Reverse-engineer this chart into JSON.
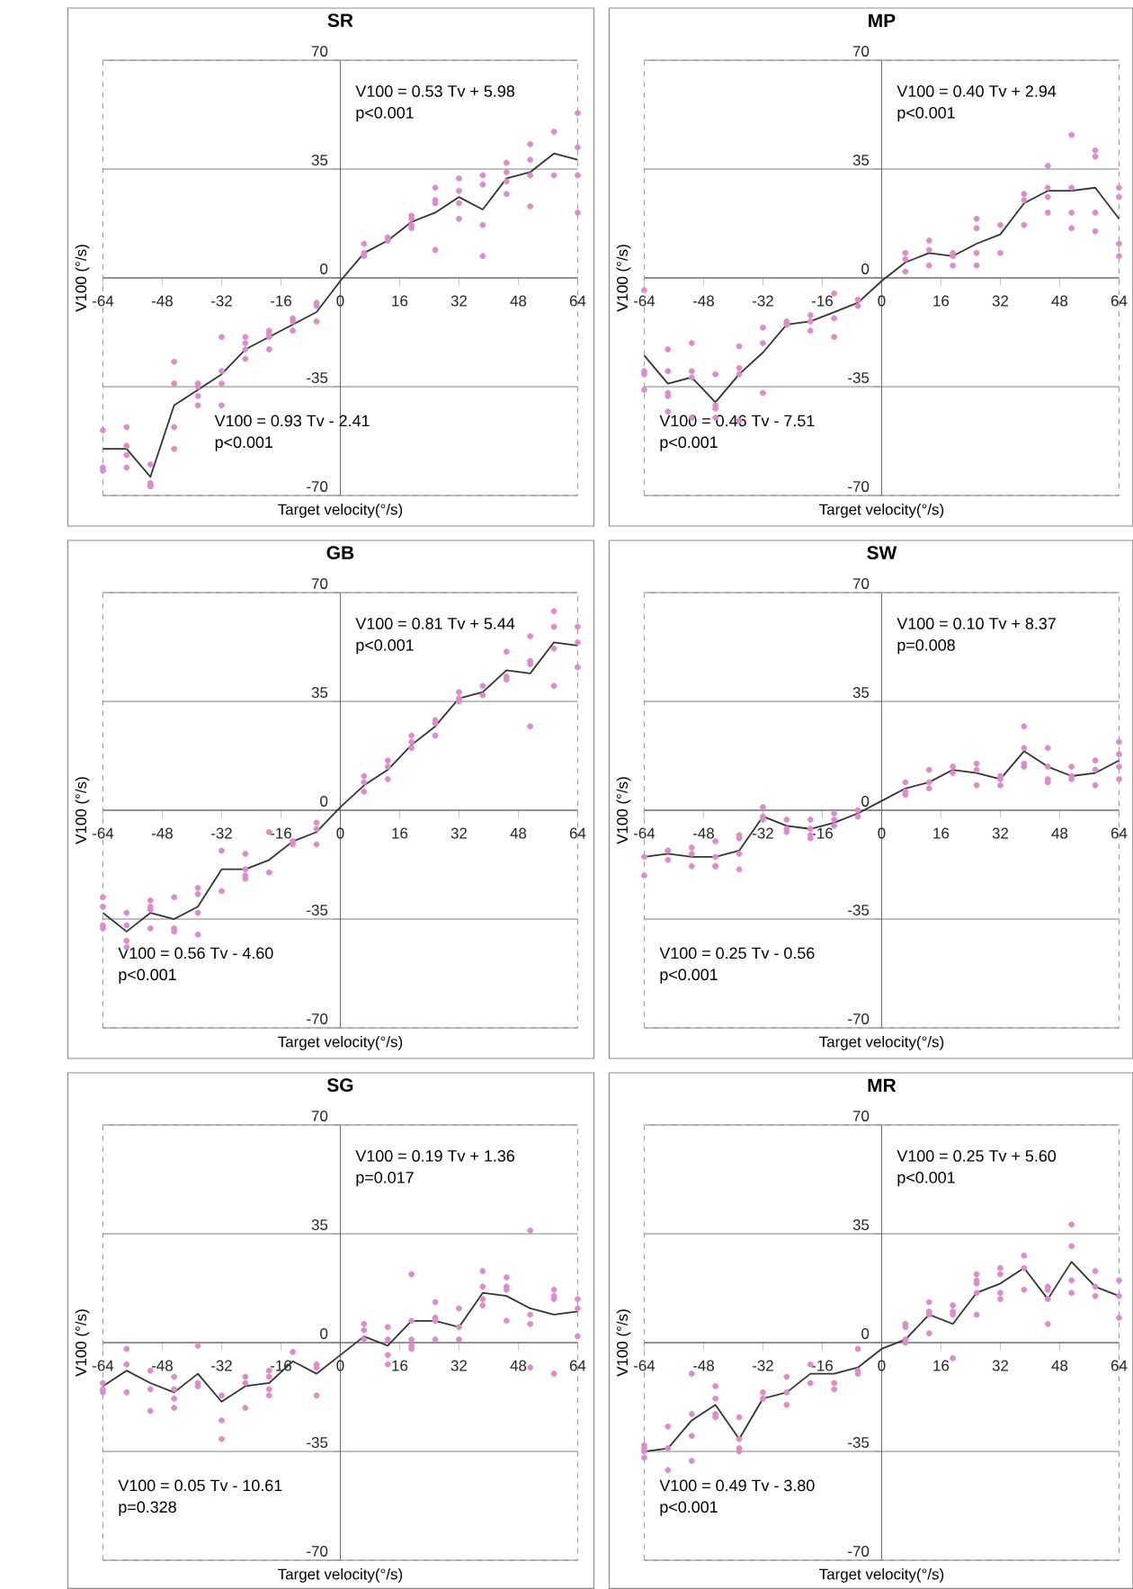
{
  "chart_data": [
    {
      "type": "line",
      "title": "SR",
      "xlabel": "Target velocity(°/s)",
      "ylabel": "V100 (°/s)",
      "xlim": [
        -64,
        64
      ],
      "ylim": [
        -70,
        70
      ],
      "xticks": [
        -64,
        -48,
        -32,
        -16,
        0,
        16,
        32,
        48,
        64
      ],
      "yticks": [
        -70,
        -35,
        0,
        35,
        70
      ],
      "grid": "y",
      "annotations": [
        "V100 = 0.53 Tv + 5.98",
        "p<0.001",
        "V100 = 0.93 Tv - 2.41",
        "p<0.001"
      ],
      "series": [
        {
          "type": "scatter",
          "marker": "circle",
          "color": "#dc8ccb",
          "x": [
            -64,
            -64,
            -64,
            -57.6,
            -57.6,
            -57.6,
            -57.6,
            -51.2,
            -51.2,
            -51.2,
            -51.2,
            -44.8,
            -44.8,
            -44.8,
            -44.8,
            -38.4,
            -38.4,
            -38.4,
            -38.4,
            -32,
            -32,
            -32,
            -32,
            -25.6,
            -25.6,
            -25.6,
            -25.6,
            -19.2,
            -19.2,
            -19.2,
            -19.2,
            -12.8,
            -12.8,
            -12.8,
            -6.4,
            -6.4,
            -6.4,
            6.4,
            6.4,
            6.4,
            12.8,
            12.8,
            19.2,
            19.2,
            19.2,
            19.2,
            25.6,
            25.6,
            25.6,
            25.6,
            32,
            32,
            32,
            32,
            38.4,
            38.4,
            38.4,
            38.4,
            44.8,
            44.8,
            44.8,
            44.8,
            51.2,
            51.2,
            51.2,
            51.2,
            57.6,
            57.6,
            64,
            64,
            64,
            64
          ],
          "values": [
            -49,
            -61,
            -62,
            -48,
            -54,
            -57,
            -61,
            -60,
            -66,
            -67,
            -67,
            -27,
            -34,
            -48,
            -55,
            -34,
            -35,
            -38,
            -41,
            -19,
            -30,
            -34,
            -41,
            -19,
            -21,
            -23,
            -26,
            -17,
            -18,
            -19,
            -23,
            -13,
            -14,
            -17,
            -8,
            -9,
            -14,
            11,
            8,
            7,
            13,
            12,
            20,
            19,
            17,
            16,
            29,
            25,
            24,
            9,
            32,
            28,
            24,
            19,
            33,
            30,
            17,
            7,
            37,
            34,
            31,
            27,
            43,
            38,
            33,
            23,
            47,
            33,
            53,
            42,
            33,
            21
          ]
        },
        {
          "marker": "none",
          "color": "#333333",
          "x": [
            -64,
            -57.6,
            -51.2,
            -44.8,
            -38.4,
            -32,
            -25.6,
            -19.2,
            -12.8,
            -6.4,
            0,
            6.4,
            12.8,
            19.2,
            25.6,
            32,
            38.4,
            44.8,
            51.2,
            57.6,
            64
          ],
          "values": [
            -55,
            -55,
            -64,
            -41,
            -36,
            -31,
            -23,
            -19,
            -15,
            -11,
            -1,
            8,
            12,
            18,
            21,
            26,
            22,
            32,
            34,
            40,
            38
          ]
        }
      ]
    },
    {
      "type": "line",
      "title": "MP",
      "xlabel": "Target velocity(°/s)",
      "ylabel": "V100 (°/s)",
      "xlim": [
        -64,
        64
      ],
      "ylim": [
        -70,
        70
      ],
      "xticks": [
        -64,
        -48,
        -32,
        -16,
        0,
        16,
        32,
        48,
        64
      ],
      "yticks": [
        -70,
        -35,
        0,
        35,
        70
      ],
      "grid": "y",
      "annotations": [
        "V100 = 0.40 Tv + 2.94",
        "p<0.001",
        "V100 = 0.46 Tv - 7.51",
        "p<0.001"
      ],
      "series": [
        {
          "type": "scatter",
          "marker": "circle",
          "color": "#dc8ccb",
          "x": [
            -64,
            -64,
            -64,
            -64,
            -57.6,
            -57.6,
            -57.6,
            -57.6,
            -57.6,
            -51.2,
            -51.2,
            -51.2,
            -51.2,
            -44.8,
            -44.8,
            -44.8,
            -44.8,
            -38.4,
            -38.4,
            -38.4,
            -38.4,
            -32,
            -32,
            -32,
            -25.6,
            -25.6,
            -25.6,
            -19.2,
            -19.2,
            -19.2,
            -12.8,
            -12.8,
            -12.8,
            -6.4,
            -6.4,
            6.4,
            6.4,
            6.4,
            12.8,
            12.8,
            12.8,
            19.2,
            19.2,
            19.2,
            25.6,
            25.6,
            25.6,
            25.6,
            32,
            32,
            38.4,
            38.4,
            38.4,
            44.8,
            44.8,
            44.8,
            44.8,
            51.2,
            51.2,
            51.2,
            51.2,
            57.6,
            57.6,
            57.6,
            57.6,
            64,
            64,
            64,
            64
          ],
          "values": [
            -4,
            -30,
            -31,
            -36,
            -23,
            -30,
            -37,
            -38,
            -43,
            -21,
            -30,
            -32,
            -45,
            -31,
            -41,
            -42,
            -45,
            -22,
            -29,
            -31,
            -46,
            -16,
            -21,
            -37,
            -14,
            -15,
            -15,
            -12,
            -14,
            -17,
            -5,
            -13,
            -19,
            -7,
            -9,
            8,
            6,
            2,
            12,
            9,
            4,
            8,
            7,
            4,
            19,
            16,
            8,
            4,
            17,
            8,
            27,
            25,
            17,
            36,
            29,
            26,
            21,
            46,
            29,
            21,
            16,
            41,
            39,
            21,
            15,
            29,
            26,
            11,
            7
          ]
        },
        {
          "marker": "none",
          "color": "#333333",
          "x": [
            -64,
            -57.6,
            -51.2,
            -44.8,
            -38.4,
            -32,
            -25.6,
            -19.2,
            -12.8,
            -6.4,
            0,
            6.4,
            12.8,
            19.2,
            25.6,
            32,
            38.4,
            44.8,
            51.2,
            57.6,
            64
          ],
          "values": [
            -25,
            -34,
            -32,
            -40,
            -31,
            -24,
            -15,
            -14,
            -11,
            -8,
            -1,
            5,
            8,
            7,
            11,
            14,
            24,
            28,
            28,
            29,
            19
          ]
        }
      ]
    },
    {
      "type": "line",
      "title": "GB",
      "xlabel": "Target velocity(°/s)",
      "ylabel": "V100 (°/s)",
      "xlim": [
        -64,
        64
      ],
      "ylim": [
        -70,
        70
      ],
      "xticks": [
        -64,
        -48,
        -32,
        -16,
        0,
        16,
        32,
        48,
        64
      ],
      "yticks": [
        -70,
        -35,
        0,
        35,
        70
      ],
      "grid": "y",
      "annotations": [
        "V100 = 0.81 Tv + 5.44",
        "p<0.001",
        "V100 = 0.56 Tv - 4.60",
        "p<0.001"
      ],
      "series": [
        {
          "type": "scatter",
          "marker": "circle",
          "color": "#dc8ccb",
          "x": [
            -64,
            -64,
            -64,
            -64,
            -57.6,
            -57.6,
            -57.6,
            -57.6,
            -51.2,
            -51.2,
            -51.2,
            -51.2,
            -44.8,
            -44.8,
            -44.8,
            -38.4,
            -38.4,
            -38.4,
            -38.4,
            -32,
            -32,
            -25.6,
            -25.6,
            -25.6,
            -25.6,
            -19.2,
            -19.2,
            -12.8,
            -12.8,
            -6.4,
            -6.4,
            -6.4,
            6.4,
            6.4,
            6.4,
            12.8,
            12.8,
            12.8,
            19.2,
            19.2,
            19.2,
            25.6,
            25.6,
            25.6,
            32,
            32,
            32,
            38.4,
            38.4,
            44.8,
            44.8,
            44.8,
            51.2,
            51.2,
            51.2,
            51.2,
            57.6,
            57.6,
            57.6,
            57.6,
            64,
            64,
            64
          ],
          "values": [
            -28,
            -31,
            -37,
            -38,
            -33,
            -37,
            -42,
            -44,
            -29,
            -31,
            -32,
            -38,
            -28,
            -38,
            -39,
            -25,
            -27,
            -33,
            -40,
            -13,
            -26,
            -14,
            -19,
            -21,
            -22,
            -7,
            -20,
            -10,
            -11,
            -4,
            -6,
            -11,
            11,
            9,
            6,
            16,
            14,
            10,
            24,
            22,
            20,
            29,
            28,
            24,
            38,
            36,
            35,
            40,
            37,
            51,
            43,
            42,
            56,
            48,
            47,
            27,
            64,
            59,
            52,
            40,
            59,
            54,
            46
          ]
        },
        {
          "marker": "none",
          "color": "#333333",
          "x": [
            -64,
            -57.6,
            -51.2,
            -44.8,
            -38.4,
            -32,
            -25.6,
            -19.2,
            -12.8,
            -6.4,
            0,
            6.4,
            12.8,
            19.2,
            25.6,
            32,
            38.4,
            44.8,
            51.2,
            57.6,
            64
          ],
          "values": [
            -33,
            -39,
            -33,
            -35,
            -31,
            -19,
            -19,
            -16,
            -10,
            -7,
            1,
            8,
            13,
            21,
            27,
            36,
            38,
            45,
            44,
            54,
            53
          ]
        }
      ]
    },
    {
      "type": "line",
      "title": "SW",
      "xlabel": "Target velocity(°/s)",
      "ylabel": "V100 (°/s)",
      "xlim": [
        -64,
        64
      ],
      "ylim": [
        -70,
        70
      ],
      "xticks": [
        -64,
        -48,
        -32,
        -16,
        0,
        16,
        32,
        48,
        64
      ],
      "yticks": [
        -70,
        -35,
        0,
        35,
        70
      ],
      "grid": "y",
      "annotations": [
        "V100 = 0.10 Tv + 8.37",
        "p=0.008",
        "V100 = 0.25 Tv - 0.56",
        "p<0.001"
      ],
      "series": [
        {
          "type": "scatter",
          "marker": "circle",
          "color": "#dc8ccb",
          "x": [
            -64,
            -64,
            -57.6,
            -57.6,
            -57.6,
            -51.2,
            -51.2,
            -51.2,
            -44.8,
            -44.8,
            -44.8,
            -44.8,
            -38.4,
            -38.4,
            -38.4,
            -38.4,
            -32,
            -32,
            -32,
            -25.6,
            -25.6,
            -25.6,
            -19.2,
            -19.2,
            -19.2,
            -19.2,
            -12.8,
            -12.8,
            -12.8,
            -6.4,
            -6.4,
            6.4,
            6.4,
            6.4,
            12.8,
            12.8,
            12.8,
            19.2,
            19.2,
            25.6,
            25.6,
            25.6,
            32,
            32,
            32,
            38.4,
            38.4,
            38.4,
            38.4,
            44.8,
            44.8,
            44.8,
            44.8,
            51.2,
            51.2,
            51.2,
            57.6,
            57.6,
            57.6,
            64,
            64,
            64,
            64
          ],
          "values": [
            -15,
            -21,
            -13,
            -13,
            -16,
            -12,
            -14,
            -18,
            -10,
            -15,
            -18,
            -18,
            -8,
            -9,
            -14,
            -19,
            1,
            -2,
            -3,
            -3,
            -6,
            -7,
            -3,
            -6,
            -8,
            -9,
            -1,
            -3,
            -5,
            0,
            -2,
            9,
            6,
            5,
            13,
            9,
            7,
            14,
            12,
            15,
            13,
            8,
            11,
            10,
            8,
            27,
            20,
            15,
            14,
            20,
            14,
            10,
            9,
            14,
            11,
            10,
            16,
            13,
            8,
            22,
            18,
            14,
            10
          ]
        },
        {
          "marker": "none",
          "color": "#333333",
          "x": [
            -64,
            -57.6,
            -51.2,
            -44.8,
            -38.4,
            -32,
            -25.6,
            -19.2,
            -12.8,
            -6.4,
            0,
            6.4,
            12.8,
            19.2,
            25.6,
            32,
            38.4,
            44.8,
            51.2,
            57.6,
            64
          ],
          "values": [
            -15,
            -14,
            -15,
            -15,
            -13,
            -2,
            -5,
            -6,
            -4,
            -1,
            3,
            7,
            9,
            13,
            12,
            10,
            19,
            14,
            11,
            12,
            16
          ]
        }
      ]
    },
    {
      "type": "line",
      "title": "SG",
      "xlabel": "Target velocity(°/s)",
      "ylabel": "V100 (°/s)",
      "xlim": [
        -64,
        64
      ],
      "ylim": [
        -70,
        70
      ],
      "xticks": [
        -64,
        -48,
        -32,
        -16,
        0,
        16,
        32,
        48,
        64
      ],
      "yticks": [
        -70,
        -35,
        0,
        35,
        70
      ],
      "grid": "y",
      "annotations": [
        "V100 = 0.19 Tv + 1.36",
        "p=0.017",
        "V100 = 0.05 Tv - 10.61",
        "p=0.328"
      ],
      "series": [
        {
          "type": "scatter",
          "marker": "circle",
          "color": "#dc8ccb",
          "x": [
            -64,
            -64,
            -64,
            -57.6,
            -57.6,
            -57.6,
            -51.2,
            -51.2,
            -51.2,
            -44.8,
            -44.8,
            -44.8,
            -44.8,
            -38.4,
            -38.4,
            -38.4,
            -32,
            -32,
            -32,
            -25.6,
            -25.6,
            -25.6,
            -19.2,
            -19.2,
            -19.2,
            -19.2,
            -12.8,
            -6.4,
            -6.4,
            -6.4,
            6.4,
            6.4,
            6.4,
            12.8,
            12.8,
            12.8,
            12.8,
            19.2,
            19.2,
            19.2,
            19.2,
            19.2,
            25.6,
            25.6,
            25.6,
            25.6,
            32,
            32,
            32,
            38.4,
            38.4,
            38.4,
            38.4,
            44.8,
            44.8,
            44.8,
            44.8,
            51.2,
            51.2,
            51.2,
            51.2,
            57.6,
            57.6,
            57.6,
            57.6,
            64,
            64,
            64
          ],
          "values": [
            -13,
            -15,
            -16,
            -2,
            -7,
            -16,
            -9,
            -15,
            -22,
            -11,
            -15,
            -18,
            -21,
            -1,
            -13,
            -14,
            -17,
            -25,
            -31,
            -11,
            -13,
            -21,
            -9,
            -11,
            -15,
            -17,
            -3,
            -7,
            -8,
            -17,
            6,
            4,
            1,
            5,
            1,
            -4,
            -7,
            22,
            7,
            1,
            -1,
            -2,
            13,
            8,
            7,
            1,
            11,
            5,
            1,
            23,
            18,
            14,
            12,
            21,
            18,
            17,
            7,
            36,
            9,
            6,
            -8,
            17,
            15,
            14,
            -10,
            14,
            11,
            2
          ]
        },
        {
          "marker": "none",
          "color": "#333333",
          "x": [
            -64,
            -57.6,
            -51.2,
            -44.8,
            -38.4,
            -32,
            -25.6,
            -19.2,
            -12.8,
            -6.4,
            0,
            6.4,
            12.8,
            19.2,
            25.6,
            32,
            38.4,
            44.8,
            51.2,
            57.6,
            64
          ],
          "values": [
            -14,
            -9,
            -13,
            -16,
            -10,
            -19,
            -14,
            -13,
            -6,
            -10,
            -4,
            2,
            -1,
            7,
            7,
            5,
            16,
            15,
            11,
            9,
            10
          ]
        }
      ]
    },
    {
      "type": "line",
      "title": "MR",
      "xlabel": "Target velocity(°/s)",
      "ylabel": "V100 (°/s)",
      "xlim": [
        -64,
        64
      ],
      "ylim": [
        -70,
        70
      ],
      "xticks": [
        -64,
        -48,
        -32,
        -16,
        0,
        16,
        32,
        48,
        64
      ],
      "yticks": [
        -70,
        -35,
        0,
        35,
        70
      ],
      "grid": "y",
      "annotations": [
        "V100 = 0.25 Tv + 5.60",
        "p<0.001",
        "V100 = 0.49 Tv - 3.80",
        "p<0.001"
      ],
      "series": [
        {
          "type": "scatter",
          "marker": "circle",
          "color": "#dc8ccb",
          "x": [
            -64,
            -64,
            -64,
            -64,
            -57.6,
            -57.6,
            -57.6,
            -51.2,
            -51.2,
            -51.2,
            -51.2,
            -44.8,
            -44.8,
            -44.8,
            -44.8,
            -38.4,
            -38.4,
            -38.4,
            -38.4,
            -32,
            -32,
            -32,
            -25.6,
            -25.6,
            -25.6,
            -19.2,
            -19.2,
            -12.8,
            -12.8,
            -6.4,
            -6.4,
            -6.4,
            6.4,
            6.4,
            6.4,
            6.4,
            12.8,
            12.8,
            12.8,
            12.8,
            19.2,
            19.2,
            19.2,
            19.2,
            25.6,
            25.6,
            25.6,
            25.6,
            25.6,
            32,
            32,
            32,
            32,
            38.4,
            38.4,
            38.4,
            44.8,
            44.8,
            44.8,
            44.8,
            51.2,
            51.2,
            51.2,
            51.2,
            57.6,
            57.6,
            57.6,
            64,
            64,
            64
          ],
          "values": [
            -33,
            -34,
            -35,
            -37,
            -27,
            -34,
            -41,
            -10,
            -23,
            -30,
            -38,
            -14,
            -18,
            -23,
            -24,
            -24,
            -31,
            -34,
            -35,
            -16,
            -18,
            -18,
            -11,
            -16,
            -20,
            -7,
            -13,
            -13,
            -15,
            -2,
            -9,
            -10,
            6,
            5,
            1,
            0,
            13,
            10,
            9,
            3,
            12,
            10,
            9,
            -5,
            22,
            20,
            19,
            16,
            9,
            24,
            22,
            16,
            14,
            28,
            24,
            17,
            18,
            17,
            14,
            6,
            38,
            31,
            20,
            16,
            23,
            18,
            15,
            20,
            15,
            8
          ]
        },
        {
          "marker": "none",
          "color": "#333333",
          "x": [
            -64,
            -57.6,
            -51.2,
            -44.8,
            -38.4,
            -32,
            -25.6,
            -19.2,
            -12.8,
            -6.4,
            0,
            6.4,
            12.8,
            19.2,
            25.6,
            32,
            38.4,
            44.8,
            51.2,
            57.6,
            64
          ],
          "values": [
            -35,
            -34,
            -25,
            -20,
            -31,
            -18,
            -16,
            -10,
            -10,
            -8,
            -2,
            1,
            9,
            6,
            16,
            19,
            24,
            14,
            26,
            18,
            15
          ]
        }
      ]
    }
  ]
}
